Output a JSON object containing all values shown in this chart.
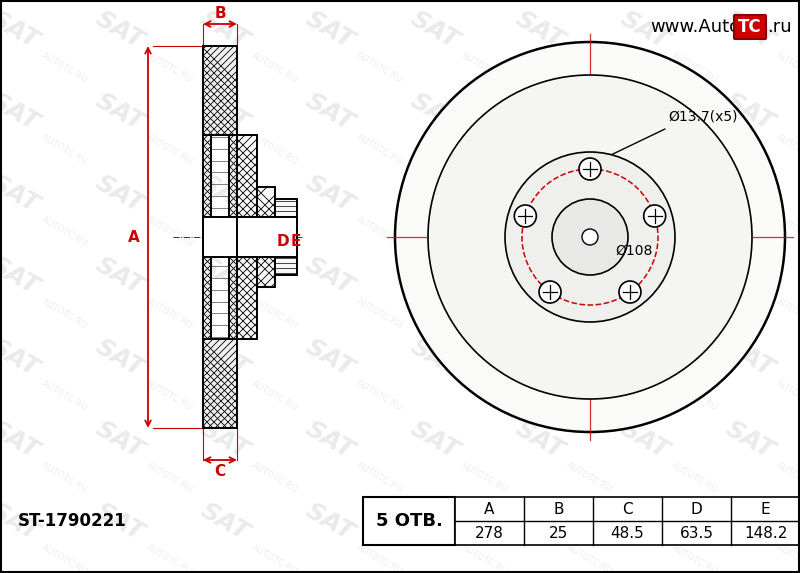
{
  "part_number": "ST-1790221",
  "holes": 5,
  "hole_label": "5 ОТВ.",
  "dim_A": 278,
  "dim_B": 25,
  "dim_C": 48.5,
  "dim_D": 63.5,
  "dim_E": 148.2,
  "bolt_circle_label": "Ø108",
  "bolt_hole_label": "Ø13.7(x5)",
  "bg_color": "#ffffff",
  "line_color": "#000000",
  "red_color": "#cc0000",
  "watermark_color": "#cccccc",
  "table_cols": [
    "A",
    "B",
    "C",
    "D",
    "E"
  ],
  "table_vals": [
    "278",
    "25",
    "48.5",
    "63.5",
    "148.2"
  ],
  "url_text": "www.Auto",
  "url_text2": "TC",
  "url_text3": ".ru",
  "sat_text": "SAT",
  "autotc_text": "AUTOTC.RU"
}
